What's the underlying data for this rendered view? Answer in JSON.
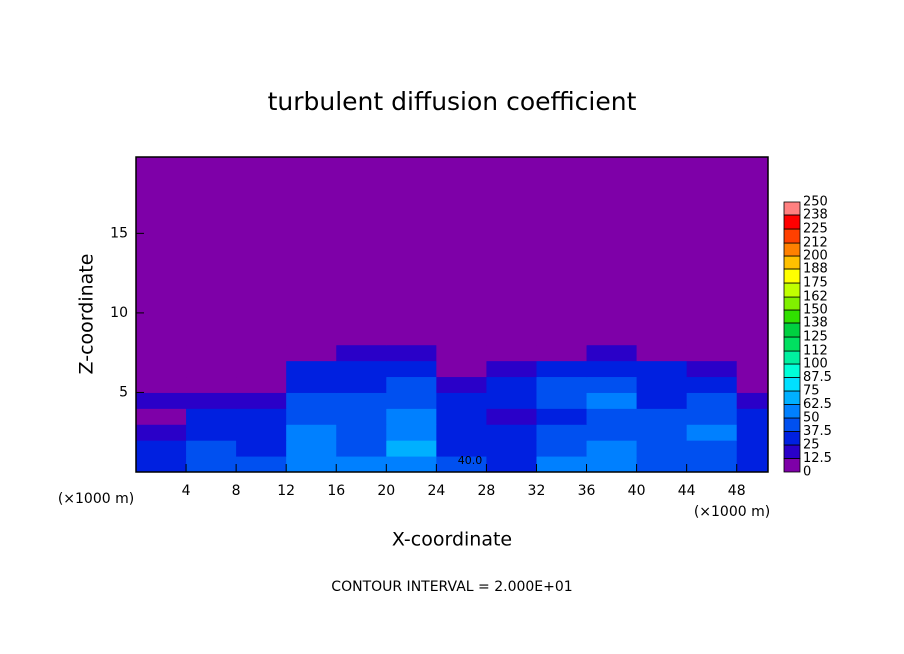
{
  "chart_data": {
    "type": "heatmap",
    "title": "turbulent diffusion coefficient",
    "xlabel": "X-coordinate",
    "ylabel": "Z-coordinate",
    "x_unit": "(×1000 m)",
    "footer": "CONTOUR INTERVAL = 2.000E+01",
    "annotation": "40.0",
    "background": "#7e00a8",
    "xlim": [
      0,
      50.5
    ],
    "ylim": [
      0,
      19.8
    ],
    "xticks": [
      4,
      8,
      12,
      16,
      20,
      24,
      28,
      32,
      36,
      40,
      44,
      48
    ],
    "yticks": [
      5,
      10,
      15
    ],
    "x": [
      2,
      6,
      10,
      14,
      18,
      22,
      26,
      30,
      34,
      38,
      42,
      46,
      50
    ],
    "z": [
      0.5,
      1.5,
      2.5,
      3.5,
      4.5,
      5.5,
      6.5,
      7.5,
      8.5
    ],
    "values": [
      [
        30,
        45,
        40,
        55,
        50,
        60,
        40,
        35,
        50,
        55,
        45,
        40,
        35
      ],
      [
        25,
        40,
        35,
        55,
        45,
        65,
        35,
        30,
        45,
        50,
        45,
        45,
        30
      ],
      [
        15,
        35,
        30,
        50,
        40,
        55,
        35,
        25,
        40,
        45,
        40,
        50,
        35
      ],
      [
        10,
        30,
        25,
        45,
        45,
        50,
        30,
        20,
        35,
        45,
        45,
        45,
        30
      ],
      [
        20,
        15,
        20,
        40,
        40,
        45,
        35,
        30,
        40,
        50,
        35,
        40,
        20
      ],
      [
        0,
        5,
        10,
        35,
        35,
        40,
        20,
        35,
        40,
        45,
        30,
        30,
        10
      ],
      [
        0,
        0,
        5,
        25,
        30,
        25,
        10,
        20,
        25,
        35,
        25,
        20,
        0
      ],
      [
        0,
        0,
        0,
        10,
        15,
        15,
        0,
        5,
        10,
        15,
        10,
        5,
        0
      ],
      [
        0,
        0,
        0,
        5,
        0,
        5,
        0,
        0,
        0,
        0,
        0,
        0,
        0
      ]
    ],
    "colorbar": {
      "ticks": [
        0,
        12.5,
        25,
        37.5,
        50,
        62.5,
        75,
        87.5,
        100,
        112,
        125,
        138,
        150,
        162,
        175,
        188,
        200,
        212,
        225,
        238,
        250
      ],
      "colors": [
        "#7e00a8",
        "#2a00c8",
        "#0020e0",
        "#0050f0",
        "#0080ff",
        "#00b0ff",
        "#00e0ff",
        "#00ffd8",
        "#00f0a0",
        "#00e060",
        "#00d040",
        "#30e000",
        "#80f000",
        "#c0ff00",
        "#ffff00",
        "#ffc000",
        "#ff8000",
        "#ff4000",
        "#ff0000",
        "#ff8080"
      ]
    }
  }
}
